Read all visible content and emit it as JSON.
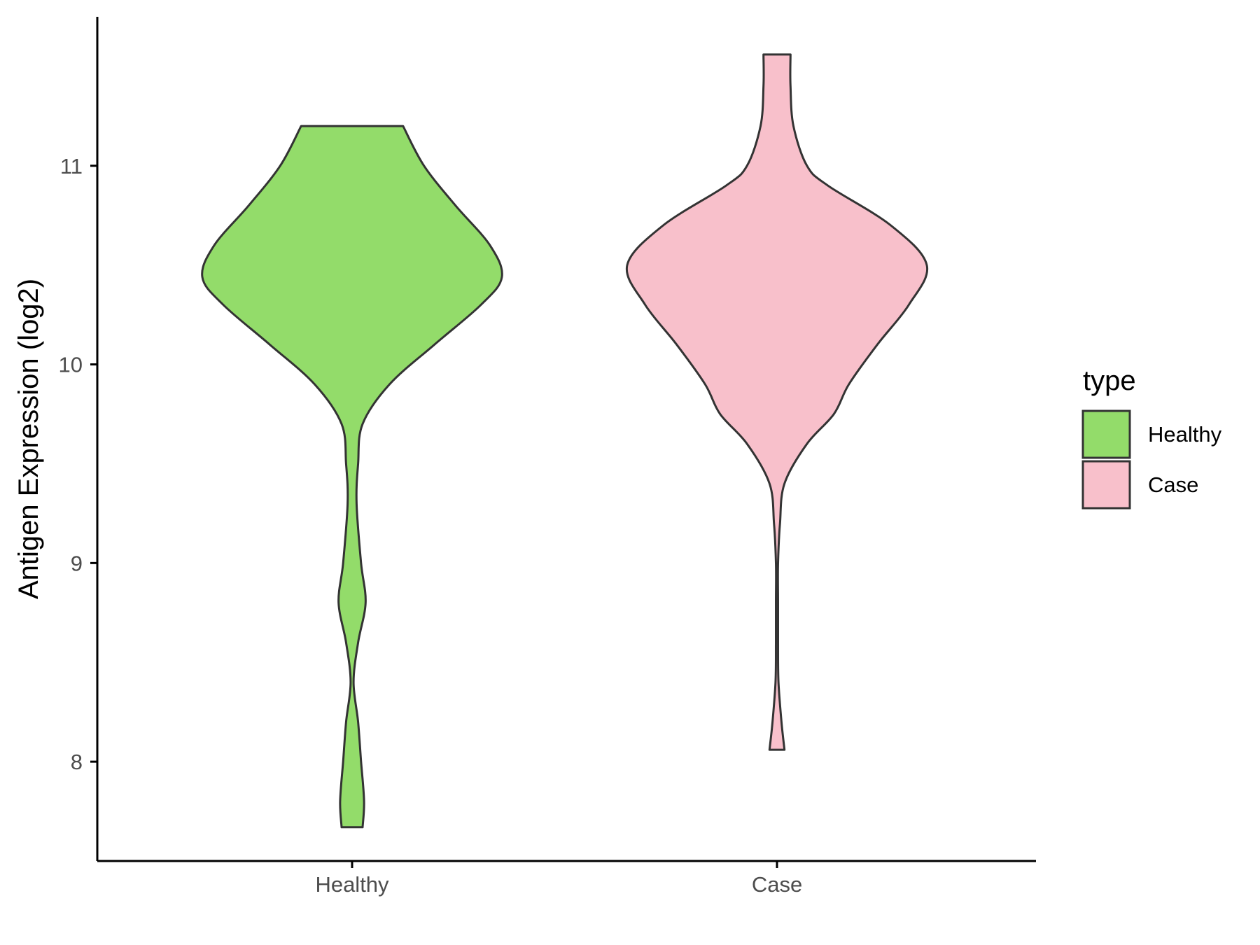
{
  "chart_data": {
    "type": "violin",
    "title": "",
    "xlabel": "",
    "ylabel": "Antigen Expression (log2)",
    "ylim": [
      7.5,
      11.75
    ],
    "yticks": [
      8,
      9,
      10,
      11
    ],
    "categories": [
      "Healthy",
      "Case"
    ],
    "series": [
      {
        "name": "Healthy",
        "color": "#93DC6A",
        "min": 7.67,
        "max": 11.2,
        "density": [
          [
            7.67,
            0.07
          ],
          [
            7.8,
            0.08
          ],
          [
            8.0,
            0.06
          ],
          [
            8.2,
            0.04
          ],
          [
            8.4,
            0.01
          ],
          [
            8.6,
            0.04
          ],
          [
            8.8,
            0.09
          ],
          [
            9.0,
            0.06
          ],
          [
            9.3,
            0.03
          ],
          [
            9.5,
            0.04
          ],
          [
            9.7,
            0.07
          ],
          [
            9.9,
            0.25
          ],
          [
            10.1,
            0.55
          ],
          [
            10.3,
            0.86
          ],
          [
            10.44,
            1.0
          ],
          [
            10.6,
            0.92
          ],
          [
            10.8,
            0.69
          ],
          [
            11.0,
            0.48
          ],
          [
            11.2,
            0.34
          ]
        ]
      },
      {
        "name": "Case",
        "color": "#F8C0CB",
        "min": 8.06,
        "max": 11.56,
        "density": [
          [
            8.06,
            0.05
          ],
          [
            8.2,
            0.03
          ],
          [
            8.4,
            0.01
          ],
          [
            8.6,
            0.0
          ],
          [
            8.8,
            0.0
          ],
          [
            9.0,
            0.0
          ],
          [
            9.2,
            0.02
          ],
          [
            9.4,
            0.05
          ],
          [
            9.6,
            0.2
          ],
          [
            9.75,
            0.38
          ],
          [
            9.9,
            0.48
          ],
          [
            10.1,
            0.67
          ],
          [
            10.3,
            0.88
          ],
          [
            10.5,
            1.0
          ],
          [
            10.7,
            0.76
          ],
          [
            10.9,
            0.34
          ],
          [
            11.0,
            0.2
          ],
          [
            11.2,
            0.11
          ],
          [
            11.4,
            0.09
          ],
          [
            11.56,
            0.09
          ]
        ]
      }
    ],
    "legend": {
      "title": "type",
      "position": "right",
      "entries": [
        "Healthy",
        "Case"
      ]
    },
    "grid": false
  }
}
